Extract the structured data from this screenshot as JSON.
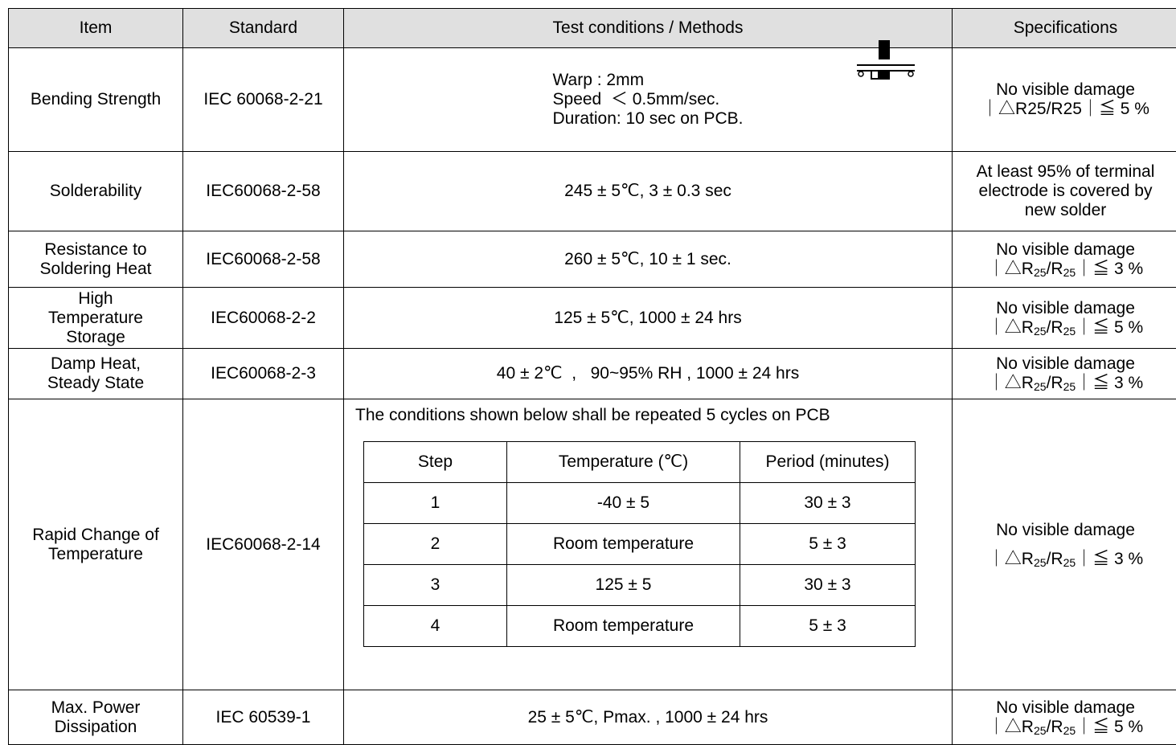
{
  "headers": [
    "Item",
    "Standard",
    "Test conditions / Methods",
    "Specifications"
  ],
  "rows": [
    {
      "item": "Bending Strength",
      "standard": "IEC 60068-2-21",
      "cond_lines": [
        "Warp : 2mm",
        "Speed  ＜ 0.5mm/sec.",
        "Duration: 10 sec on PCB."
      ],
      "spec_line1": "No visible damage",
      "spec_pre": "｜△R25/R25｜≦ 5 %"
    },
    {
      "item": "Solderability",
      "standard": "IEC60068-2-58",
      "cond": "245 ± 5℃, 3 ± 0.3 sec",
      "spec_lines": [
        "At least 95% of terminal",
        "electrode is covered by",
        "new solder"
      ]
    },
    {
      "item_lines": [
        "Resistance to",
        "Soldering Heat"
      ],
      "standard": "IEC60068-2-58",
      "cond": "260 ± 5℃, 10 ± 1 sec.",
      "spec_line1": "No visible damage",
      "spec_pct": "3 %"
    },
    {
      "item_lines": [
        "High",
        "Temperature",
        "Storage"
      ],
      "standard": "IEC60068-2-2",
      "cond": "125 ± 5℃, 1000 ± 24 hrs",
      "spec_line1": "No visible damage",
      "spec_pct": "5 %"
    },
    {
      "item_lines": [
        "Damp Heat,",
        "Steady State"
      ],
      "standard": "IEC60068-2-3",
      "cond": "40 ± 2℃  ,   90~95% RH , 1000 ± 24 hrs",
      "spec_line1": "No visible damage",
      "spec_pct": "3 %"
    },
    {
      "item_lines": [
        "Rapid Change of",
        "Temperature"
      ],
      "standard": "IEC60068-2-14",
      "cond_note": "The conditions shown below shall be repeated 5 cycles on PCB",
      "inner_headers": [
        "Step",
        "Temperature (℃)",
        "Period (minutes)"
      ],
      "inner_rows": [
        [
          "1",
          "-40 ± 5",
          "30 ± 3"
        ],
        [
          "2",
          "Room temperature",
          "5 ± 3"
        ],
        [
          "3",
          "125 ± 5",
          "30 ± 3"
        ],
        [
          "4",
          "Room temperature",
          "5 ± 3"
        ]
      ],
      "spec_line1": "No visible damage",
      "spec_pct": "3 %"
    },
    {
      "item_lines": [
        "Max. Power",
        "Dissipation"
      ],
      "standard": "IEC 60539-1",
      "cond": "25 ± 5℃, Pmax. , 1000 ± 24 hrs",
      "spec_line1": "No visible damage",
      "spec_pct": "5 %"
    }
  ],
  "spec_symbols": {
    "open": "｜△R",
    "sub": "25",
    "slash": "/R",
    "close": "｜≦ "
  }
}
